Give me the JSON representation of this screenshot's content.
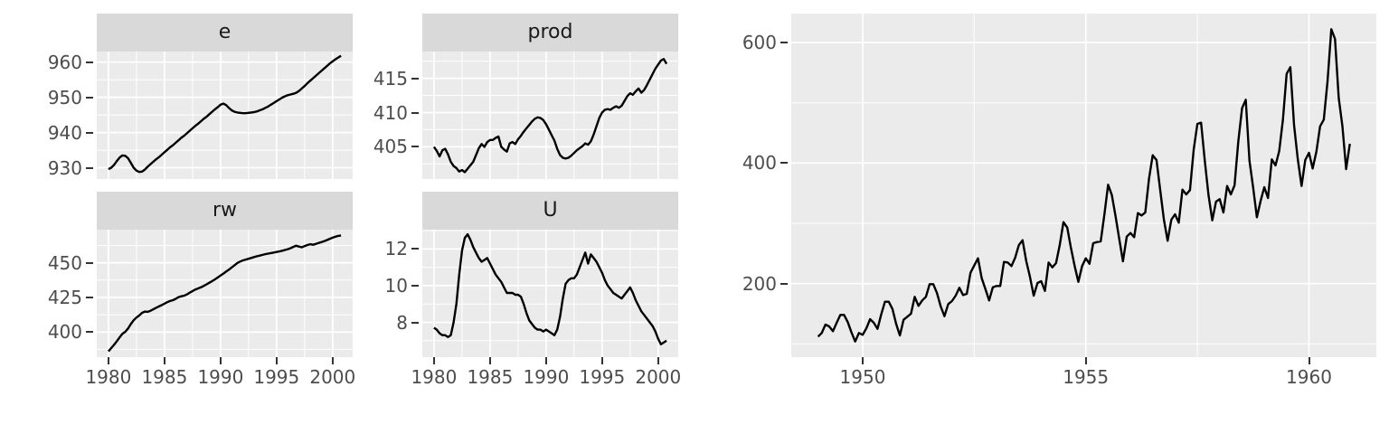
{
  "style": {
    "panel_background": "#EBEBEB",
    "strip_background": "#D9D9D9",
    "grid_color": "#FFFFFF",
    "axis_text_color": "#4D4D4D",
    "tick_color": "#333333",
    "line_color": "#000000"
  },
  "chart_data": [
    {
      "type": "line",
      "title": "",
      "layout": "facet-grid-2x2-free-y",
      "legend": "none",
      "grid": true,
      "x": {
        "start": 1980.0,
        "step": 0.25
      },
      "x_ticks": [
        1980,
        1985,
        1990,
        1995,
        2000
      ],
      "x_minor": [
        1982.5,
        1987.5,
        1992.5,
        1997.5
      ],
      "x_domain": [
        1978.96,
        2001.79
      ],
      "facets": [
        {
          "label": "e",
          "y_ticks": [
            930,
            940,
            950,
            960
          ],
          "y_minor": [
            935,
            945,
            955
          ],
          "y_domain": [
            926.8,
            963.0
          ],
          "values": [
            929.6,
            930.0,
            930.8,
            931.9,
            932.9,
            933.5,
            933.4,
            932.7,
            931.4,
            930.0,
            929.2,
            928.8,
            928.9,
            929.5,
            930.3,
            931.0,
            931.7,
            932.4,
            933.0,
            933.7,
            934.4,
            935.1,
            935.8,
            936.4,
            937.1,
            937.8,
            938.5,
            939.1,
            939.8,
            940.5,
            941.2,
            941.9,
            942.5,
            943.2,
            943.9,
            944.5,
            945.2,
            945.9,
            946.6,
            947.2,
            947.9,
            948.2,
            947.8,
            947.0,
            946.3,
            945.9,
            945.7,
            945.6,
            945.5,
            945.5,
            945.6,
            945.7,
            945.8,
            946.0,
            946.3,
            946.6,
            947.0,
            947.4,
            947.9,
            948.4,
            948.9,
            949.4,
            949.9,
            950.3,
            950.6,
            950.8,
            951.0,
            951.3,
            951.8,
            952.5,
            953.2,
            954.0,
            954.7,
            955.4,
            956.1,
            956.8,
            957.5,
            958.2,
            958.9,
            959.6,
            960.2,
            960.8,
            961.3,
            961.8
          ]
        },
        {
          "label": "prod",
          "y_ticks": [
            405,
            410,
            415
          ],
          "y_minor": [
            402.5,
            407.5,
            412.5,
            417.5
          ],
          "y_domain": [
            400.3,
            418.9
          ],
          "values": [
            405.0,
            404.4,
            403.6,
            404.5,
            404.7,
            403.9,
            402.8,
            402.2,
            401.9,
            401.4,
            401.6,
            401.3,
            401.8,
            402.3,
            402.8,
            403.8,
            404.8,
            405.4,
            405.0,
            405.7,
            406.0,
            406.0,
            406.3,
            406.5,
            405.0,
            404.6,
            404.3,
            405.5,
            405.7,
            405.4,
            406.1,
            406.6,
            407.2,
            407.7,
            408.2,
            408.7,
            409.1,
            409.3,
            409.2,
            408.9,
            408.3,
            407.5,
            406.7,
            405.9,
            404.7,
            403.8,
            403.4,
            403.3,
            403.4,
            403.7,
            404.1,
            404.5,
            404.8,
            405.1,
            405.5,
            405.3,
            405.8,
            406.8,
            408.0,
            409.2,
            410.0,
            410.4,
            410.5,
            410.4,
            410.7,
            410.9,
            410.7,
            411.0,
            411.7,
            412.4,
            412.8,
            412.6,
            413.1,
            413.5,
            412.9,
            413.3,
            414.0,
            414.8,
            415.6,
            416.4,
            417.0,
            417.6,
            417.8,
            417.1
          ]
        },
        {
          "label": "rw",
          "y_ticks": [
            400,
            425,
            450
          ],
          "y_minor": [
            387.5,
            412.5,
            437.5,
            462.5
          ],
          "y_domain": [
            381.9,
            473.9
          ],
          "values": [
            386.1,
            388.4,
            390.8,
            393.4,
            396.2,
            398.8,
            400.2,
            402.6,
            405.8,
            408.5,
            410.5,
            412.0,
            413.9,
            414.8,
            414.6,
            415.4,
            416.4,
            417.5,
            418.5,
            419.4,
            420.5,
            421.6,
            422.4,
            423.0,
            424.0,
            425.2,
            425.8,
            426.2,
            427.2,
            428.4,
            429.6,
            430.7,
            431.5,
            432.3,
            433.3,
            434.4,
            435.6,
            436.8,
            438.0,
            439.4,
            440.8,
            442.2,
            443.6,
            445.0,
            446.6,
            448.2,
            449.8,
            450.9,
            451.7,
            452.3,
            452.9,
            453.5,
            454.1,
            454.7,
            455.2,
            455.7,
            456.2,
            456.6,
            457.0,
            457.4,
            457.8,
            458.2,
            458.7,
            459.2,
            459.8,
            460.5,
            461.5,
            462.3,
            461.7,
            461.2,
            462.0,
            462.8,
            463.4,
            463.0,
            463.6,
            464.3,
            464.9,
            465.6,
            466.4,
            467.3,
            468.1,
            468.8,
            469.4,
            469.7
          ]
        },
        {
          "label": "U",
          "y_ticks": [
            8,
            10,
            12
          ],
          "y_minor": [
            7,
            9,
            11,
            13
          ],
          "y_domain": [
            6.1,
            13.05
          ],
          "values": [
            7.7,
            7.6,
            7.4,
            7.3,
            7.3,
            7.2,
            7.3,
            8.0,
            9.0,
            10.6,
            11.9,
            12.6,
            12.8,
            12.5,
            12.1,
            11.8,
            11.5,
            11.3,
            11.4,
            11.5,
            11.2,
            10.9,
            10.6,
            10.4,
            10.2,
            9.9,
            9.6,
            9.6,
            9.6,
            9.5,
            9.5,
            9.4,
            9.0,
            8.5,
            8.1,
            7.9,
            7.7,
            7.6,
            7.6,
            7.5,
            7.6,
            7.5,
            7.4,
            7.3,
            7.6,
            8.3,
            9.3,
            10.1,
            10.3,
            10.4,
            10.4,
            10.6,
            11.0,
            11.4,
            11.8,
            11.2,
            11.7,
            11.5,
            11.3,
            11.0,
            10.7,
            10.3,
            10.0,
            9.8,
            9.6,
            9.5,
            9.4,
            9.3,
            9.5,
            9.7,
            9.9,
            9.6,
            9.2,
            8.9,
            8.6,
            8.4,
            8.2,
            8.0,
            7.8,
            7.5,
            7.1,
            6.8,
            6.9,
            7.0
          ]
        }
      ]
    },
    {
      "type": "line",
      "title": "",
      "legend": "none",
      "grid": true,
      "x": {
        "start": 1949.0,
        "step": 0.0833333
      },
      "x_ticks": [
        1950,
        1955,
        1960
      ],
      "x_minor": [
        1952.5,
        1957.5
      ],
      "x_domain": [
        1948.4,
        1961.51
      ],
      "y_ticks": [
        200,
        400,
        600
      ],
      "y_minor": [
        100,
        300,
        500
      ],
      "y_domain": [
        78,
        648
      ],
      "values": [
        112,
        118,
        132,
        129,
        121,
        135,
        148,
        148,
        136,
        119,
        104,
        118,
        115,
        126,
        141,
        135,
        125,
        149,
        170,
        170,
        158,
        133,
        114,
        140,
        145,
        150,
        178,
        163,
        172,
        178,
        199,
        199,
        184,
        162,
        146,
        166,
        171,
        180,
        193,
        181,
        183,
        218,
        230,
        242,
        209,
        191,
        172,
        194,
        196,
        196,
        236,
        235,
        229,
        243,
        264,
        272,
        237,
        211,
        180,
        201,
        204,
        188,
        235,
        227,
        234,
        264,
        302,
        293,
        259,
        229,
        203,
        229,
        242,
        233,
        267,
        269,
        270,
        315,
        364,
        347,
        312,
        274,
        237,
        278,
        284,
        277,
        317,
        313,
        318,
        374,
        413,
        405,
        355,
        306,
        271,
        306,
        315,
        301,
        356,
        348,
        355,
        422,
        465,
        467,
        404,
        347,
        305,
        336,
        340,
        318,
        362,
        348,
        363,
        435,
        491,
        505,
        404,
        359,
        310,
        337,
        360,
        342,
        406,
        396,
        420,
        472,
        548,
        559,
        463,
        407,
        362,
        405,
        417,
        391,
        419,
        461,
        472,
        535,
        622,
        606,
        508,
        461,
        390,
        432
      ]
    }
  ]
}
